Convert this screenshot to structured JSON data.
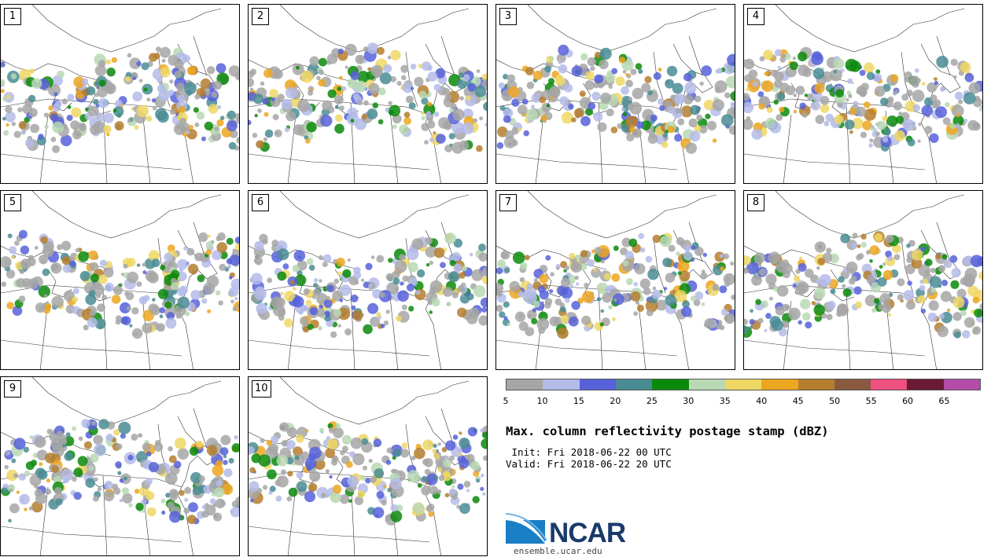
{
  "panels": [
    {
      "label": "1"
    },
    {
      "label": "2"
    },
    {
      "label": "3"
    },
    {
      "label": "4"
    },
    {
      "label": "5"
    },
    {
      "label": "6"
    },
    {
      "label": "7"
    },
    {
      "label": "8"
    },
    {
      "label": "9"
    },
    {
      "label": "10"
    }
  ],
  "colorbar": {
    "colors": [
      "#a6a6a6",
      "#b4bbe8",
      "#5661d9",
      "#4a8c94",
      "#0a8a0a",
      "#b9d8b4",
      "#eed764",
      "#eca620",
      "#b57e2e",
      "#8a5a40",
      "#ee5080",
      "#6a1a34",
      "#b24ca8"
    ],
    "ticks": [
      "5",
      "10",
      "15",
      "20",
      "25",
      "30",
      "35",
      "40",
      "45",
      "50",
      "55",
      "60",
      "65"
    ],
    "units": "dBZ"
  },
  "title": "Max. column reflectivity postage stamp (dBZ)",
  "init_line": " Init: Fri 2018-06-22 00 UTC",
  "valid_line": "Valid: Fri 2018-06-22 20 UTC",
  "logo": {
    "text": "NCAR",
    "site": "ensemble.ucar.edu"
  }
}
